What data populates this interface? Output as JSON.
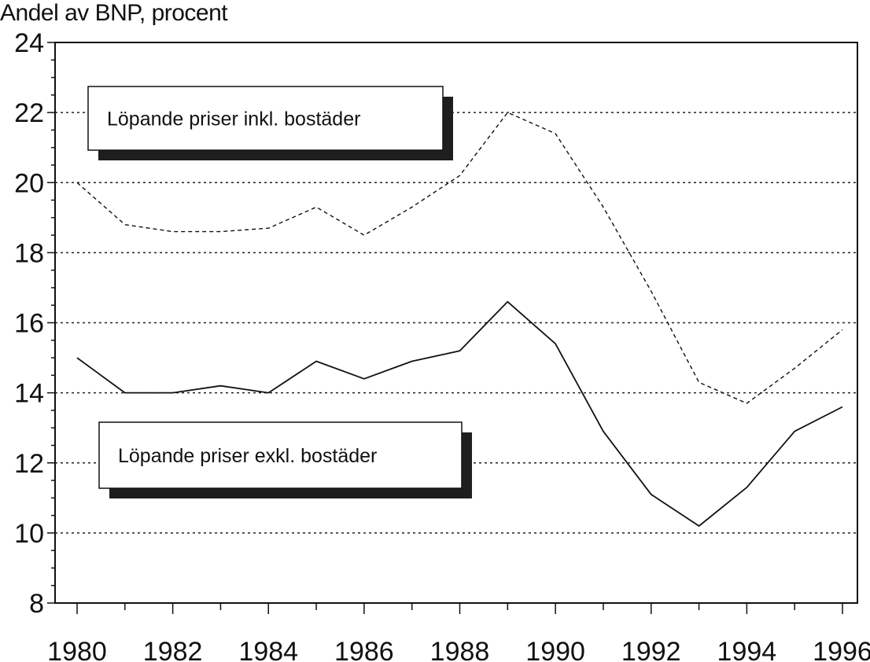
{
  "chart_data": {
    "type": "line",
    "title": "",
    "ylabel": "Andel av BNP, procent",
    "xlabel": "",
    "x": [
      1980,
      1981,
      1982,
      1983,
      1984,
      1985,
      1986,
      1987,
      1988,
      1989,
      1990,
      1991,
      1992,
      1993,
      1994,
      1995,
      1996
    ],
    "xticks": [
      "1980",
      "1982",
      "1984",
      "1986",
      "1988",
      "1990",
      "1992",
      "1994",
      "1996"
    ],
    "yticks": [
      "8",
      "10",
      "12",
      "14",
      "16",
      "18",
      "20",
      "22",
      "24"
    ],
    "ylim": [
      8,
      24
    ],
    "xlim": [
      1980,
      1996
    ],
    "grid": "horizontal dotted",
    "series": [
      {
        "name": "Löpande priser inkl. bostäder",
        "style": "dashed",
        "values": [
          20.0,
          18.8,
          18.6,
          18.6,
          18.7,
          19.3,
          18.5,
          19.3,
          20.2,
          22.0,
          21.4,
          19.3,
          16.9,
          14.3,
          13.7,
          14.7,
          15.8
        ]
      },
      {
        "name": "Löpande priser exkl. bostäder",
        "style": "solid",
        "values": [
          15.0,
          14.0,
          14.0,
          14.2,
          14.0,
          14.9,
          14.4,
          14.9,
          15.2,
          16.6,
          15.4,
          12.9,
          11.1,
          10.2,
          11.3,
          12.9,
          13.6
        ]
      }
    ]
  }
}
